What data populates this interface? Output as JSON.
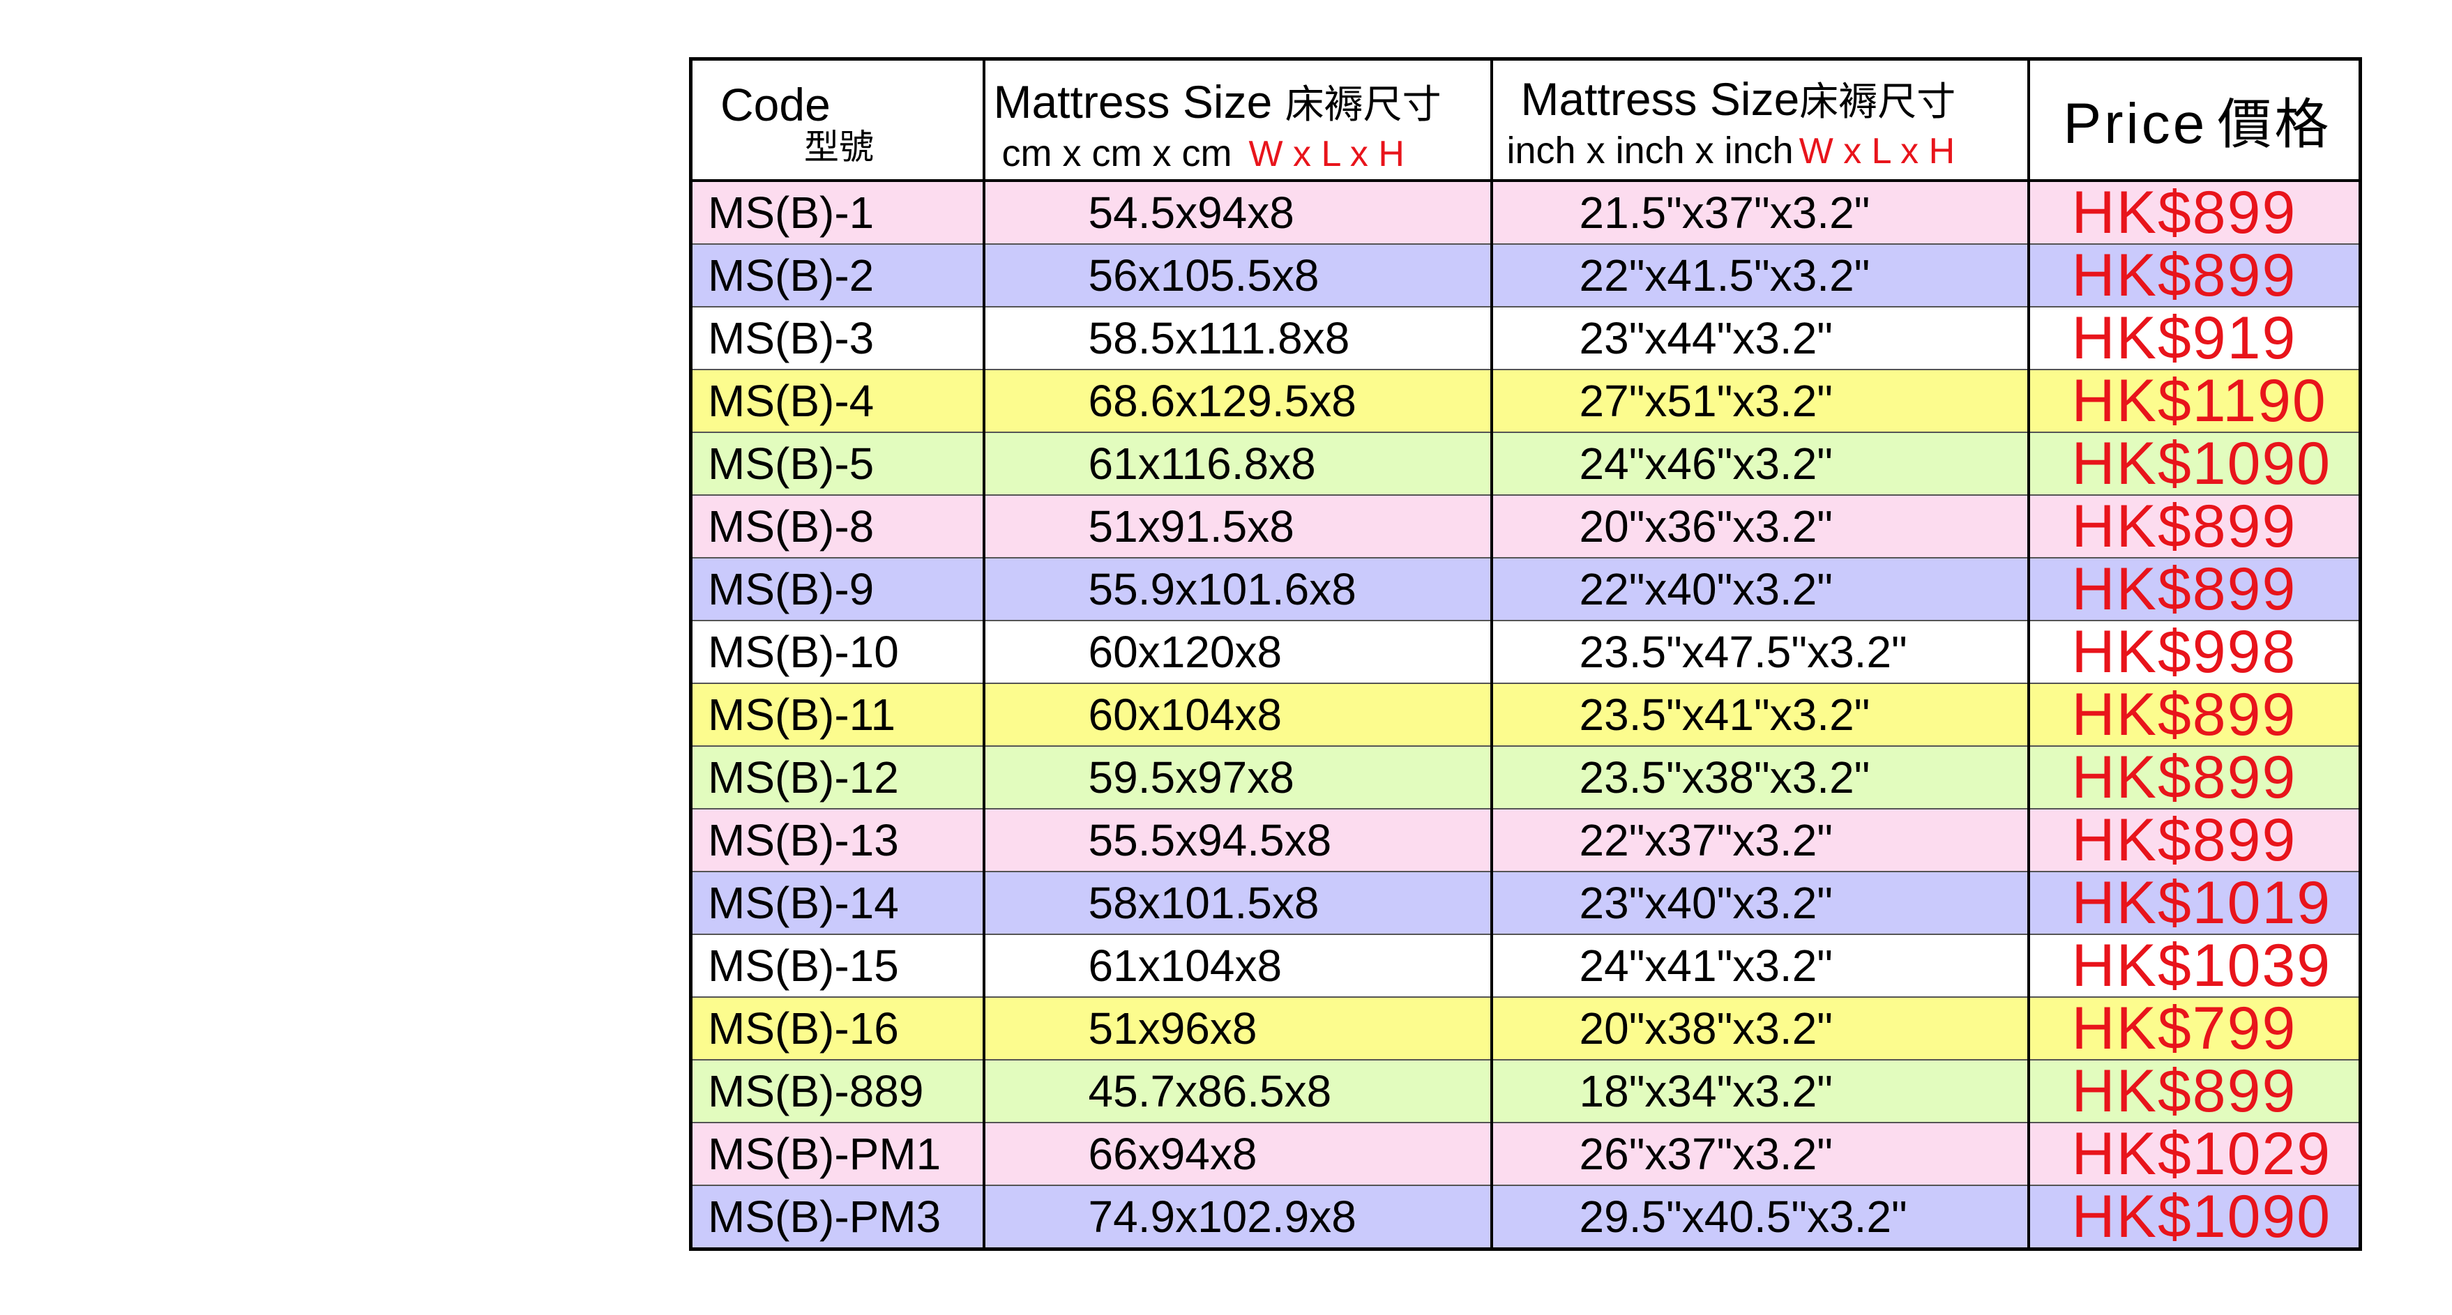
{
  "header": {
    "code_en": "Code",
    "code_zh": "型號",
    "size_cm_title": "Mattress Size",
    "size_cm_title_zh": "床褥尺寸",
    "size_cm_unit": "cm x cm x cm",
    "size_cm_dims": "W x L x H",
    "size_inch_title": "Mattress Size",
    "size_inch_title_zh": "床褥尺寸",
    "size_inch_unit": "inch x inch x inch",
    "size_inch_dims": "W x L x H",
    "price_en": "Price",
    "price_zh": "價格"
  },
  "colors": {
    "pink": "#fcdcef",
    "lavender": "#cacafc",
    "white": "#ffffff",
    "yellow": "#fcfc8e",
    "green": "#e2fcbe",
    "price_red": "#e8141b"
  },
  "rows": [
    {
      "code": "MS(B)-1",
      "cm": "54.5x94x8",
      "inch": "21.5\"x37\"x3.2\"",
      "price": "HK$899",
      "color": "#fcdcef"
    },
    {
      "code": "MS(B)-2",
      "cm": "56x105.5x8",
      "inch": "22\"x41.5\"x3.2\"",
      "price": "HK$899",
      "color": "#cacafc"
    },
    {
      "code": "MS(B)-3",
      "cm": "58.5x111.8x8",
      "inch": "23\"x44\"x3.2\"",
      "price": "HK$919",
      "color": "#ffffff"
    },
    {
      "code": "MS(B)-4",
      "cm": "68.6x129.5x8",
      "inch": "27\"x51\"x3.2\"",
      "price": "HK$1190",
      "color": "#fcfc8e"
    },
    {
      "code": "MS(B)-5",
      "cm": "61x116.8x8",
      "inch": "24\"x46\"x3.2\"",
      "price": "HK$1090",
      "color": "#e2fcbe"
    },
    {
      "code": "MS(B)-8",
      "cm": "51x91.5x8",
      "inch": "20\"x36\"x3.2\"",
      "price": "HK$899",
      "color": "#fcdcef"
    },
    {
      "code": "MS(B)-9",
      "cm": "55.9x101.6x8",
      "inch": "22\"x40\"x3.2\"",
      "price": "HK$899",
      "color": "#cacafc"
    },
    {
      "code": "MS(B)-10",
      "cm": "60x120x8",
      "inch": "23.5\"x47.5\"x3.2\"",
      "price": "HK$998",
      "color": "#ffffff"
    },
    {
      "code": "MS(B)-11",
      "cm": "60x104x8",
      "inch": "23.5\"x41\"x3.2\"",
      "price": "HK$899",
      "color": "#fcfc8e"
    },
    {
      "code": "MS(B)-12",
      "cm": "59.5x97x8",
      "inch": "23.5\"x38\"x3.2\"",
      "price": "HK$899",
      "color": "#e2fcbe"
    },
    {
      "code": "MS(B)-13",
      "cm": "55.5x94.5x8",
      "inch": "22\"x37\"x3.2\"",
      "price": "HK$899",
      "color": "#fcdcef"
    },
    {
      "code": "MS(B)-14",
      "cm": "58x101.5x8",
      "inch": "23\"x40\"x3.2\"",
      "price": "HK$1019",
      "color": "#cacafc"
    },
    {
      "code": "MS(B)-15",
      "cm": "61x104x8",
      "inch": "24\"x41\"x3.2\"",
      "price": "HK$1039",
      "color": "#ffffff"
    },
    {
      "code": "MS(B)-16",
      "cm": "51x96x8",
      "inch": "20\"x38\"x3.2\"",
      "price": "HK$799",
      "color": "#fcfc8e"
    },
    {
      "code": "MS(B)-889",
      "cm": "45.7x86.5x8",
      "inch": "18\"x34\"x3.2\"",
      "price": "HK$899",
      "color": "#e2fcbe"
    },
    {
      "code": "MS(B)-PM1",
      "cm": "66x94x8",
      "inch": "26\"x37\"x3.2\"",
      "price": "HK$1029",
      "color": "#fcdcef"
    },
    {
      "code": "MS(B)-PM3",
      "cm": "74.9x102.9x8",
      "inch": "29.5\"x40.5\"x3.2\"",
      "price": "HK$1090",
      "color": "#cacafc"
    }
  ]
}
